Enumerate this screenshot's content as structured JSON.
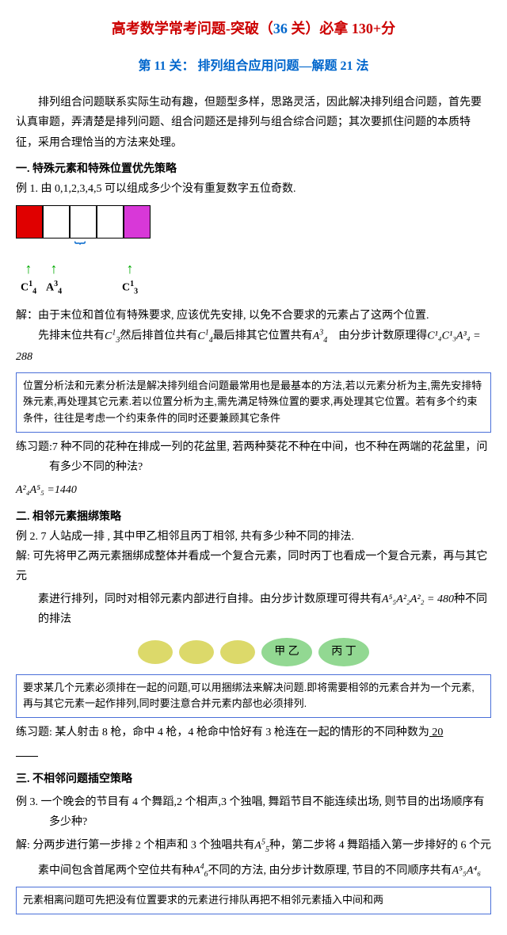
{
  "title": {
    "t1": "高考数学常考问题-突破（",
    "n1": "36",
    "t2": " 关）必拿 130+分"
  },
  "subtitle": "第 11 关： 排列组合应用问题—解题 21 法",
  "intro": "排列组合问题联系实际生动有趣，但题型多样，思路灵活，因此解决排列组合问题，首先要认真审题，弄清楚是排列问题、组合问题还是排列与组合综合问题；其次要抓住问题的本质特征，采用合理恰当的方法来处理。",
  "sec1": {
    "hd": "一. 特殊元素和特殊位置优先策略",
    "ex": "例 1. 由 0,1,2,3,4,5 可以组成多少个没有重复数字五位奇数.",
    "diagram": {
      "cells": [
        "#e00000",
        "#fff",
        "#fff",
        "#fff",
        "#d838d8"
      ],
      "labels": [
        "C",
        "A",
        "",
        "",
        "C"
      ],
      "subs": [
        "4",
        "4",
        "",
        "",
        "3"
      ],
      "sups": [
        "1",
        "3",
        "",
        "",
        "1"
      ]
    },
    "sol1": "解：由于末位和首位有特殊要求, 应该优先安排, 以免不合要求的元素占了这两个位置.",
    "sol2a": "　　先排末位共有",
    "sol2f1": {
      "base": "C",
      "sub": "3",
      "sup": "1"
    },
    "sol2b": "然后排首位共有",
    "sol2f2": {
      "base": "C",
      "sub": "4",
      "sup": "1"
    },
    "sol2c": "最后排其它位置共有",
    "sol2f3": {
      "base": "A",
      "sub": "4",
      "sup": "3"
    },
    "sol2d": "　由分步计数原理得",
    "sol2f4": "C¹₄C¹₃A³₄ = 288",
    "box": "位置分析法和元素分析法是解决排列组合问题最常用也是最基本的方法,若以元素分析为主,需先安排特殊元素,再处理其它元素.若以位置分析为主,需先满足特殊位置的要求,再处理其它位置。若有多个约束条件，往往是考虑一个约束条件的同时还要兼顾其它条件",
    "pr1": "练习题:7 种不同的花种在排成一列的花盆里, 若两种葵花不种在中间，也不种在两端的花盆里，问有多少不同的种法?",
    "pr1ans": "A²₄A⁵₅ =1440"
  },
  "sec2": {
    "hd": "二. 相邻元素捆绑策略",
    "ex": "例 2.  7 人站成一排 , 其中甲乙相邻且丙丁相邻,  共有多少种不同的排法.",
    "sol1": "解: 可先将甲乙两元素捆绑成整体并看成一个复合元素，同时丙丁也看成一个复合元素，再与其它元",
    "sol2a": "素进行排列，同时对相邻元素内部进行自排。由分步计数原理可得共有",
    "sol2f": "A⁵₅A²₂A²₂ = 480",
    "sol2b": "种不同的排法",
    "diagram": {
      "circ_color": "#dcd96a",
      "big_color": "#92d892",
      "g1": "甲 乙",
      "g2": "丙 丁"
    },
    "box": "要求某几个元素必须排在一起的问题,可以用捆绑法来解决问题.即将需要相邻的元素合并为一个元素,再与其它元素一起作排列,同时要注意合并元素内部也必须排列.",
    "pr": "练习题: 某人射击 8 枪，命中 4 枪，4 枪命中恰好有 3 枪连在一起的情形的不同种数为",
    "prans": "  20  "
  },
  "sec3": {
    "hd": "三. 不相邻问题插空策略",
    "ex": "例 3. 一个晚会的节目有 4 个舞蹈,2 个相声,3 个独唱, 舞蹈节目不能连续出场, 则节目的出场顺序有多少种?",
    "sol1a": "解: 分两步进行第一步排 2 个相声和 3 个独唱共有",
    "sol1f1": {
      "base": "A",
      "sub": "5",
      "sup": "5"
    },
    "sol1b": "种，第二步将 4 舞蹈插入第一步排好的 6 个元",
    "sol2a": "素中间包含首尾两个空位共有种",
    "sol2f1": {
      "base": "A",
      "sub": "6",
      "sup": "4"
    },
    "sol2b": "不同的方法, 由分步计数原理, 节目的不同顺序共有",
    "sol2f2": "A⁵₅A⁴₆",
    "box": "元素相离问题可先把没有位置要求的元素进行排队再把不相邻元素插入中间和两"
  }
}
